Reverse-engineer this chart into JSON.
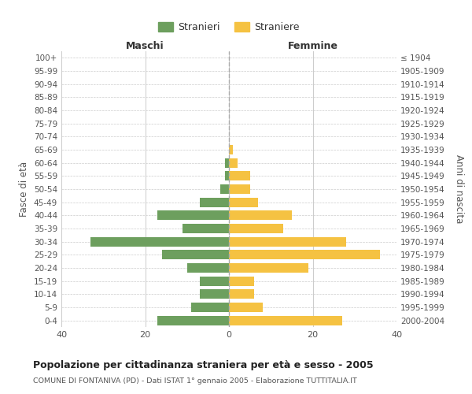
{
  "age_groups": [
    "100+",
    "95-99",
    "90-94",
    "85-89",
    "80-84",
    "75-79",
    "70-74",
    "65-69",
    "60-64",
    "55-59",
    "50-54",
    "45-49",
    "40-44",
    "35-39",
    "30-34",
    "25-29",
    "20-24",
    "15-19",
    "10-14",
    "5-9",
    "0-4"
  ],
  "birth_years": [
    "≤ 1904",
    "1905-1909",
    "1910-1914",
    "1915-1919",
    "1920-1924",
    "1925-1929",
    "1930-1934",
    "1935-1939",
    "1940-1944",
    "1945-1949",
    "1950-1954",
    "1955-1959",
    "1960-1964",
    "1965-1969",
    "1970-1974",
    "1975-1979",
    "1980-1984",
    "1985-1989",
    "1990-1994",
    "1995-1999",
    "2000-2004"
  ],
  "maschi": [
    0,
    0,
    0,
    0,
    0,
    0,
    0,
    0,
    1,
    1,
    2,
    7,
    17,
    11,
    33,
    16,
    10,
    7,
    7,
    9,
    17
  ],
  "femmine": [
    0,
    0,
    0,
    0,
    0,
    0,
    0,
    1,
    2,
    5,
    5,
    7,
    15,
    13,
    28,
    36,
    19,
    6,
    6,
    8,
    27
  ],
  "maschi_color": "#6d9f5e",
  "femmine_color": "#f5c242",
  "background_color": "#ffffff",
  "grid_color": "#cccccc",
  "title": "Popolazione per cittadinanza straniera per età e sesso - 2005",
  "subtitle": "COMUNE DI FONTANIVA (PD) - Dati ISTAT 1° gennaio 2005 - Elaborazione TUTTITALIA.IT",
  "xlabel_left": "Maschi",
  "xlabel_right": "Femmine",
  "ylabel_left": "Fasce di età",
  "ylabel_right": "Anni di nascita",
  "legend_maschi": "Stranieri",
  "legend_femmine": "Straniere",
  "xlim": 40,
  "figsize": [
    6.0,
    5.0
  ],
  "dpi": 100
}
